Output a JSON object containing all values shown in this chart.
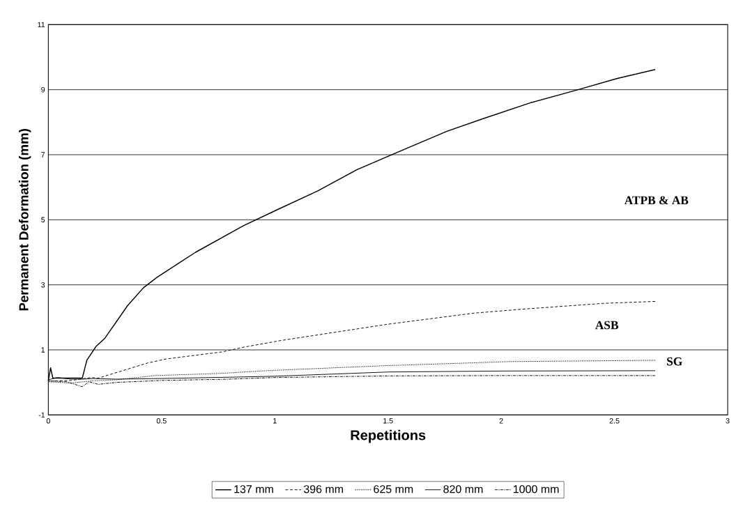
{
  "chart_data": {
    "type": "line",
    "xlabel": "Repetitions",
    "ylabel": "Permanent Deformation (mm)",
    "xlim": [
      0,
      3
    ],
    "ylim": [
      -1,
      11
    ],
    "xticks": [
      0,
      0.5,
      1,
      1.5,
      2,
      2.5,
      3
    ],
    "yticks": [
      -1,
      1,
      3,
      5,
      7,
      9,
      11
    ],
    "grid": "y",
    "legend": "bottom",
    "marker": "none",
    "series": [
      {
        "name": "137 mm",
        "color": "#000000",
        "line_style": "solid",
        "x": [
          0,
          0.01,
          0.02,
          0.15,
          0.17,
          0.21,
          0.25,
          0.35,
          0.42,
          0.48,
          0.65,
          0.86,
          1.02,
          1.19,
          1.36,
          1.53,
          1.76,
          1.92,
          2.13,
          2.34,
          2.51,
          2.68
        ],
        "values": [
          0.05,
          0.45,
          0.13,
          0.13,
          0.68,
          1.1,
          1.36,
          2.36,
          2.91,
          3.23,
          4.0,
          4.81,
          5.34,
          5.89,
          6.53,
          7.04,
          7.72,
          8.11,
          8.6,
          9.0,
          9.34,
          9.62
        ]
      },
      {
        "name": "396 mm",
        "color": "#000000",
        "line_style": "dashed",
        "x": [
          0,
          0.1,
          0.19,
          0.22,
          0.29,
          0.44,
          0.52,
          0.77,
          0.86,
          1.02,
          1.34,
          1.5,
          1.88,
          2.11,
          2.45,
          2.68
        ],
        "values": [
          0.04,
          0.06,
          0.15,
          0.13,
          0.28,
          0.6,
          0.72,
          0.94,
          1.08,
          1.28,
          1.62,
          1.79,
          2.13,
          2.26,
          2.43,
          2.49
        ]
      },
      {
        "name": "625 mm",
        "color": "#000000",
        "line_style": "dotted",
        "x": [
          0,
          0.1,
          0.2,
          0.3,
          0.47,
          0.77,
          0.96,
          1.47,
          2.04,
          2.68
        ],
        "values": [
          0.02,
          -0.02,
          0.05,
          0.08,
          0.21,
          0.28,
          0.36,
          0.51,
          0.64,
          0.68
        ]
      },
      {
        "name": "820 mm",
        "color": "#000000",
        "line_style": "solid",
        "x": [
          0,
          0.04,
          0.1,
          0.15,
          0.2,
          0.3,
          0.5,
          0.8,
          1.0,
          1.5,
          2.0,
          2.68
        ],
        "values": [
          0.08,
          0.15,
          0.1,
          0.1,
          0.12,
          0.1,
          0.12,
          0.16,
          0.19,
          0.32,
          0.35,
          0.36
        ]
      },
      {
        "name": "1000 mm",
        "color": "#000000",
        "line_style": "dashdot",
        "x": [
          0,
          0.08,
          0.15,
          0.18,
          0.22,
          0.3,
          0.5,
          0.8,
          1.0,
          1.5,
          2.0,
          2.68
        ],
        "values": [
          0.05,
          0.02,
          -0.13,
          0.02,
          -0.06,
          0.0,
          0.06,
          0.1,
          0.15,
          0.2,
          0.21,
          0.21
        ]
      }
    ],
    "annotations": [
      "ATPB & AB",
      "ASB",
      "SG"
    ]
  }
}
